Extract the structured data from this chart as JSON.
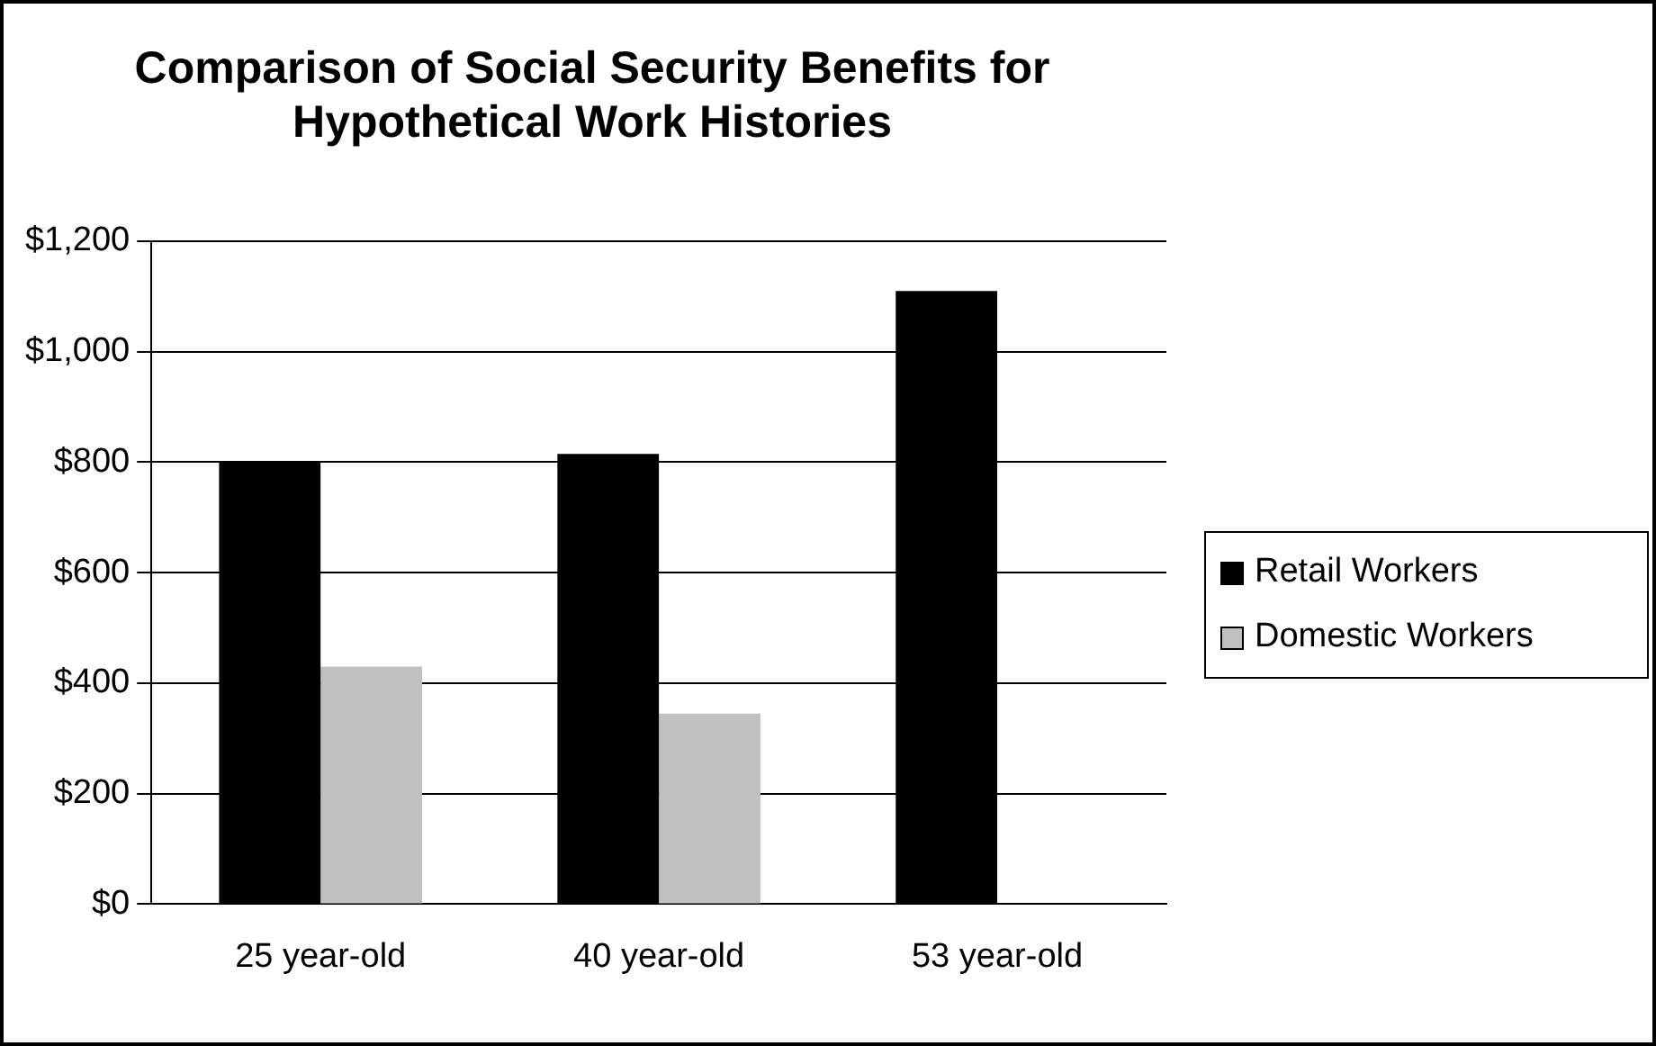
{
  "chart_data": {
    "type": "bar",
    "title": "Comparison of Social Security Benefits for\nHypothetical Work Histories",
    "categories": [
      "25 year-old",
      "40 year-old",
      "53 year-old"
    ],
    "series": [
      {
        "name": "Retail Workers",
        "color": "#000000",
        "values": [
          800,
          815,
          1110
        ]
      },
      {
        "name": "Domestic Workers",
        "color": "#c0c0c0",
        "values": [
          430,
          345,
          null
        ]
      }
    ],
    "ylim": [
      0,
      1200
    ],
    "yticks": [
      {
        "value": 0,
        "label": "$0"
      },
      {
        "value": 200,
        "label": "$200"
      },
      {
        "value": 400,
        "label": "$400"
      },
      {
        "value": 600,
        "label": "$600"
      },
      {
        "value": 800,
        "label": "$800"
      },
      {
        "value": 1000,
        "label": "$1,000"
      },
      {
        "value": 1200,
        "label": "$1,200"
      }
    ],
    "grid": "y",
    "legend": "right"
  }
}
